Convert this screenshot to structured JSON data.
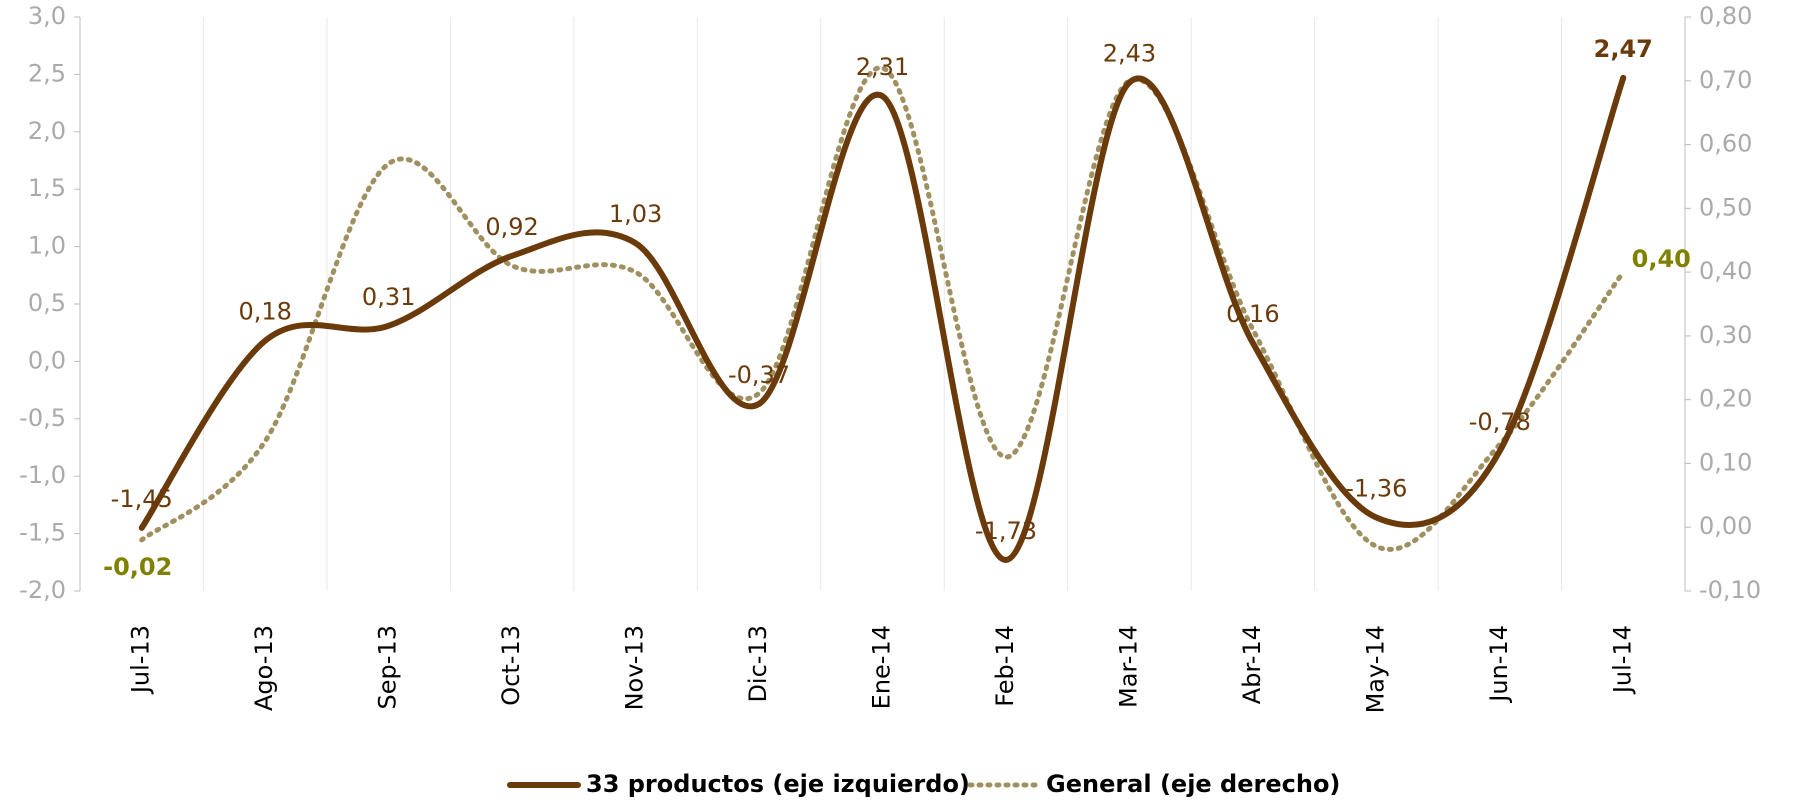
{
  "chart_data": {
    "type": "line",
    "categories": [
      "Jul-13",
      "Ago-13",
      "Sep-13",
      "Oct-13",
      "Nov-13",
      "Dic-13",
      "Ene-14",
      "Feb-14",
      "Mar-14",
      "Abr-14",
      "May-14",
      "Jun-14",
      "Jul-14"
    ],
    "series": [
      {
        "name": "33 productos (eje izquierdo)",
        "color": "#6b3a0a",
        "axis": "y",
        "values": [
          -1.45,
          0.18,
          0.31,
          0.92,
          1.03,
          -0.37,
          2.31,
          -1.73,
          2.43,
          0.16,
          -1.36,
          -0.78,
          2.47
        ],
        "value_labels": [
          "-1,45",
          "0,18",
          "0,31",
          "0,92",
          "1,03",
          "-0,37",
          "2,31",
          "-1,73",
          "2,43",
          "0,16",
          "-1,36",
          "-0,78",
          "2,47"
        ]
      },
      {
        "name": "General (eje derecho)",
        "color": "#a09060",
        "axis": "y2",
        "values": [
          -0.02,
          0.135,
          0.57,
          0.41,
          0.4,
          0.21,
          0.72,
          0.11,
          0.7,
          0.31,
          -0.03,
          0.13,
          0.4
        ],
        "value_labels": [
          "-0,02",
          null,
          null,
          null,
          null,
          null,
          null,
          null,
          null,
          null,
          null,
          null,
          "0,40"
        ]
      }
    ],
    "ylim": [
      -2.0,
      3.0
    ],
    "yticks": [
      {
        "value": -2.0,
        "label": "-2,0"
      },
      {
        "value": -1.5,
        "label": "-1,5"
      },
      {
        "value": -1.0,
        "label": "-1,0"
      },
      {
        "value": -0.5,
        "label": "-0,5"
      },
      {
        "value": 0,
        "label": "0,0"
      },
      {
        "value": 0.5,
        "label": "0,5"
      },
      {
        "value": 1.0,
        "label": "1,0"
      },
      {
        "value": 1.5,
        "label": "1,5"
      },
      {
        "value": 2.0,
        "label": "2,0"
      },
      {
        "value": 2.5,
        "label": "2,5"
      },
      {
        "value": 3.0,
        "label": "3,0"
      }
    ],
    "y2lim": [
      -0.1,
      0.8
    ],
    "y2ticks": [
      {
        "value": -0.1,
        "label": "-0,10"
      },
      {
        "value": 0,
        "label": "0,00"
      },
      {
        "value": 0.1,
        "label": "0,10"
      },
      {
        "value": 0.2,
        "label": "0,20"
      },
      {
        "value": 0.3,
        "label": "0,30"
      },
      {
        "value": 0.4,
        "label": "0,40"
      },
      {
        "value": 0.5,
        "label": "0,50"
      },
      {
        "value": 0.6,
        "label": "0,60"
      },
      {
        "value": 0.7,
        "label": "0,70"
      },
      {
        "value": 0.8,
        "label": "0,80"
      }
    ],
    "grid": true,
    "legend": "bottom"
  }
}
